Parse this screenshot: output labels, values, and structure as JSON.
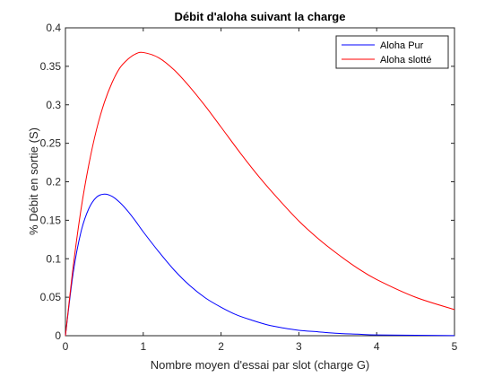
{
  "chart_data": {
    "type": "line",
    "title": "Débit d'aloha suivant la charge",
    "xlabel": "Nombre moyen d'essai par slot (charge G)",
    "ylabel": "% Débit en sortie (S)",
    "xlim": [
      0,
      5
    ],
    "ylim": [
      0,
      0.4
    ],
    "x_ticks": [
      "0",
      "1",
      "2",
      "3",
      "4",
      "5"
    ],
    "y_ticks": [
      "0",
      "0.05",
      "0.1",
      "0.15",
      "0.2",
      "0.25",
      "0.3",
      "0.35",
      "0.4"
    ],
    "grid": false,
    "legend_position": "top-right",
    "series": [
      {
        "name": "Aloha Pur",
        "color": "#0000ff",
        "x": [
          0,
          0.1,
          0.2,
          0.3,
          0.4,
          0.5,
          0.6,
          0.7,
          0.8,
          0.9,
          1.0,
          1.2,
          1.4,
          1.6,
          1.8,
          2.0,
          2.2,
          2.4,
          2.6,
          2.8,
          3.0,
          3.25,
          3.5,
          3.75,
          4.0,
          4.5,
          5.0
        ],
        "y": [
          0,
          0.082,
          0.135,
          0.165,
          0.18,
          0.184,
          0.181,
          0.173,
          0.162,
          0.149,
          0.135,
          0.109,
          0.085,
          0.065,
          0.049,
          0.037,
          0.027,
          0.02,
          0.014,
          0.01,
          0.007,
          0.005,
          0.003,
          0.002,
          0.001,
          0.0006,
          0.0002
        ]
      },
      {
        "name": "Aloha slotté",
        "color": "#ff0000",
        "x": [
          0,
          0.1,
          0.2,
          0.3,
          0.4,
          0.5,
          0.6,
          0.7,
          0.8,
          0.9,
          1.0,
          1.2,
          1.4,
          1.6,
          1.8,
          2.0,
          2.25,
          2.5,
          2.75,
          3.0,
          3.25,
          3.5,
          3.75,
          4.0,
          4.5,
          5.0
        ],
        "y": [
          0,
          0.09,
          0.164,
          0.222,
          0.268,
          0.303,
          0.329,
          0.348,
          0.359,
          0.366,
          0.368,
          0.361,
          0.345,
          0.323,
          0.298,
          0.271,
          0.237,
          0.205,
          0.176,
          0.149,
          0.126,
          0.106,
          0.088,
          0.073,
          0.05,
          0.034
        ]
      }
    ]
  }
}
